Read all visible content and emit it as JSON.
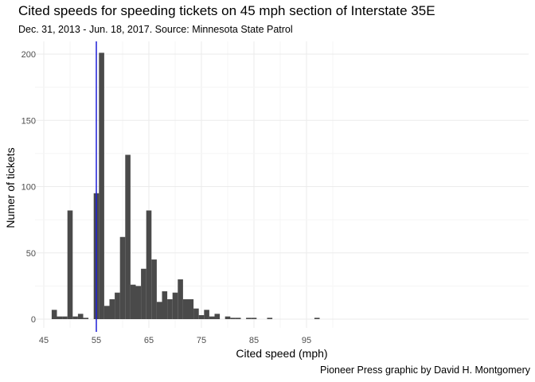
{
  "header": {
    "title": "Cited speeds for speeding tickets on 45 mph section of Interstate 35E",
    "subtitle": "Dec. 31, 2013 - Jun. 18, 2017. Source: Minnesota State Patrol"
  },
  "footer": {
    "caption": "Pioneer Press graphic by David H. Montgomery"
  },
  "colors": {
    "bar": "#4a4a4a",
    "reference_line": "#1f1fd6",
    "grid_major": "#ebebeb",
    "grid_minor": "#f5f5f5"
  },
  "chart_data": {
    "type": "bar",
    "title": "Cited speeds for speeding tickets on 45 mph section of Interstate 35E",
    "subtitle": "Dec. 31, 2013 - Jun. 18, 2017. Source: Minnesota State Patrol",
    "xlabel": "Cited speed (mph)",
    "ylabel": "Numer of tickets",
    "xlim": [
      45,
      100
    ],
    "ylim": [
      0,
      200
    ],
    "xticks": [
      "45",
      "55",
      "65",
      "75",
      "85",
      "95"
    ],
    "yticks": [
      "0",
      "50",
      "100",
      "150",
      "200"
    ],
    "bin_width": 1,
    "x": [
      47,
      48,
      49,
      50,
      51,
      52,
      53,
      55,
      56,
      57,
      58,
      59,
      60,
      61,
      62,
      63,
      64,
      65,
      66,
      67,
      68,
      69,
      70,
      71,
      72,
      73,
      74,
      75,
      76,
      77,
      78,
      80,
      81,
      82,
      84,
      85,
      88,
      97
    ],
    "values": [
      7,
      2,
      2,
      82,
      2,
      4,
      1,
      95,
      201,
      10,
      15,
      20,
      62,
      124,
      26,
      25,
      38,
      82,
      45,
      13,
      21,
      15,
      20,
      30,
      15,
      15,
      8,
      3,
      7,
      2,
      4,
      2,
      1,
      1,
      1,
      1,
      1,
      1
    ],
    "reference_line": {
      "x": 55
    },
    "grid": true
  }
}
